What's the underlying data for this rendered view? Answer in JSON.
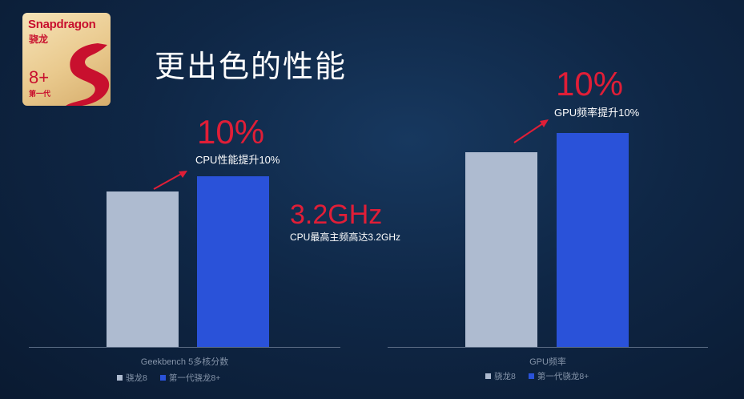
{
  "logo": {
    "brand": "Snapdragon",
    "cn": "骁龙",
    "model": "8+",
    "gen": "第一代"
  },
  "title": "更出色的性能",
  "colors": {
    "series_old": "#aebbd0",
    "series_new": "#2a52d9",
    "highlight": "#e01e37",
    "background": "#0f2746"
  },
  "annotations": {
    "cpu_pct": "10%",
    "cpu_text": "CPU性能提升10%",
    "freq_big": "3.2GHz",
    "freq_text": "CPU最高主频高达3.2GHz",
    "gpu_pct": "10%",
    "gpu_text": "GPU频率提升10%"
  },
  "chart_data": [
    {
      "type": "bar",
      "xlabel": "Geekbench 5多核分数",
      "series": [
        {
          "name": "骁龙8",
          "values": [
            100
          ]
        },
        {
          "name": "第一代骁龙8+",
          "values": [
            110
          ]
        }
      ],
      "legend": "bottom"
    },
    {
      "type": "bar",
      "xlabel": "GPU频率",
      "series": [
        {
          "name": "骁龙8",
          "values": [
            100
          ]
        },
        {
          "name": "第一代骁龙8+",
          "values": [
            110
          ]
        }
      ],
      "legend": "bottom"
    }
  ]
}
